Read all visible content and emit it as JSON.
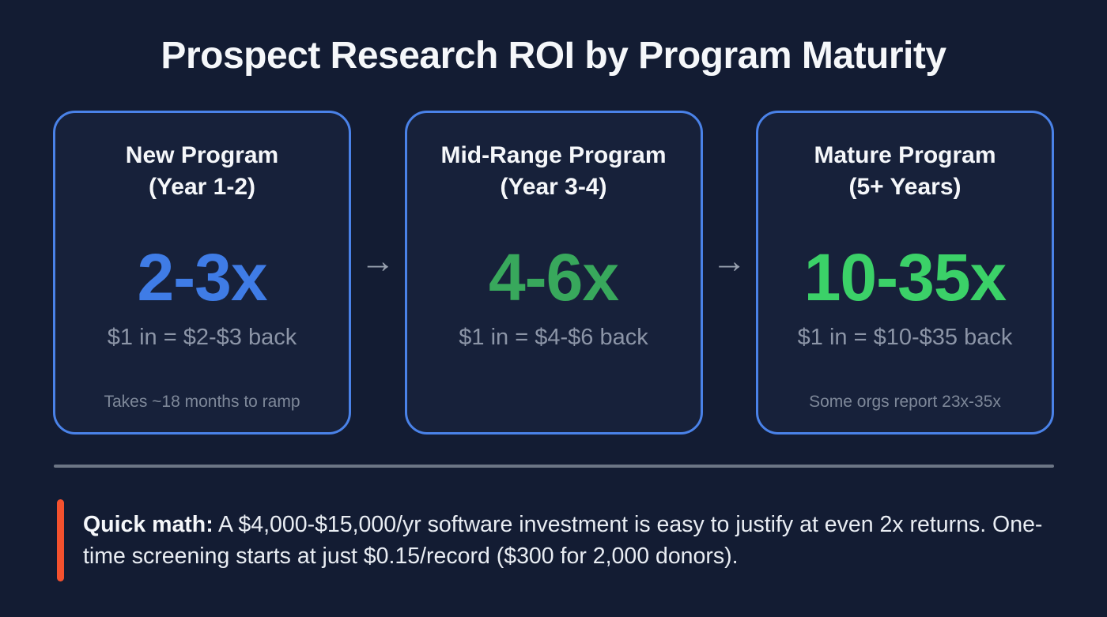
{
  "page": {
    "title": "Prospect Research ROI by Program Maturity"
  },
  "cards": [
    {
      "title_line1": "New Program",
      "title_line2": "(Year 1-2)",
      "multiplier": "2-3x",
      "equation": "$1 in = $2-$3 back",
      "footnote": "Takes ~18 months to ramp",
      "accent_color": "#3f7ce6"
    },
    {
      "title_line1": "Mid-Range Program",
      "title_line2": "(Year 3-4)",
      "multiplier": "4-6x",
      "equation": "$1 in = $4-$6 back",
      "footnote": "",
      "accent_color": "#38a85c"
    },
    {
      "title_line1": "Mature Program",
      "title_line2": "(5+ Years)",
      "multiplier": "10-35x",
      "equation": "$1 in = $10-$35 back",
      "footnote": "Some orgs report 23x-35x",
      "accent_color": "#3bd168"
    }
  ],
  "arrows": {
    "glyph": "→"
  },
  "callout": {
    "label": "Quick math:",
    "text": " A $4,000-$15,000/yr software investment is easy to justify at even 2x returns. One-time screening starts at just $0.15/record ($300 for 2,000 donors)."
  },
  "colors": {
    "background": "#131c33",
    "card_background": "#17213a",
    "card_border": "#4a82e8",
    "accent_blue": "#3f7ce6",
    "accent_green_mid": "#38a85c",
    "accent_green_bright": "#3bd168",
    "text_primary": "#f5f7fa",
    "text_secondary": "#8c95a7",
    "text_footnote": "#7e8899",
    "arrow": "#99a1af",
    "divider": "#6c7585",
    "callout_bar": "#f4512e"
  }
}
